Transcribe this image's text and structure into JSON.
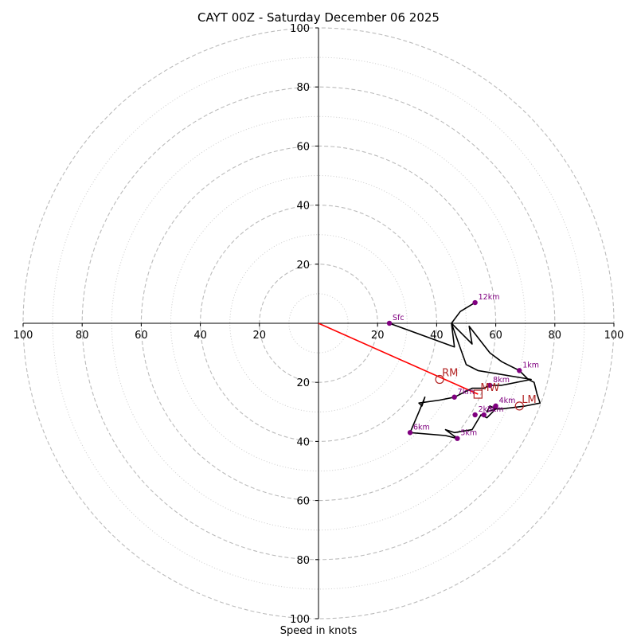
{
  "chart_data": {
    "type": "hodograph",
    "title": "CAYT 00Z - Saturday December 06 2025",
    "xlabel": "Speed in knots",
    "xlim": [
      -100,
      100
    ],
    "ylim": [
      -100,
      100
    ],
    "x_ticks": [
      {
        "value": -100,
        "label": "100"
      },
      {
        "value": -80,
        "label": "80"
      },
      {
        "value": -60,
        "label": "60"
      },
      {
        "value": -40,
        "label": "40"
      },
      {
        "value": -20,
        "label": "20"
      },
      {
        "value": 20,
        "label": "20"
      },
      {
        "value": 40,
        "label": "40"
      },
      {
        "value": 60,
        "label": "60"
      },
      {
        "value": 80,
        "label": "80"
      },
      {
        "value": 100,
        "label": "100"
      }
    ],
    "y_ticks": [
      {
        "value": 100,
        "label": "100"
      },
      {
        "value": 80,
        "label": "80"
      },
      {
        "value": 60,
        "label": "60"
      },
      {
        "value": 40,
        "label": "40"
      },
      {
        "value": 20,
        "label": "20"
      },
      {
        "value": -20,
        "label": "20"
      },
      {
        "value": -40,
        "label": "40"
      },
      {
        "value": -60,
        "label": "60"
      },
      {
        "value": -80,
        "label": "80"
      },
      {
        "value": -100,
        "label": "100"
      }
    ],
    "rings_major": [
      20,
      40,
      60,
      80,
      100
    ],
    "rings_minor": [
      10,
      30,
      50,
      70,
      90
    ],
    "hodograph_line": [
      {
        "u": 24,
        "v": 0
      },
      {
        "u": 46,
        "v": -8
      },
      {
        "u": 45,
        "v": 0
      },
      {
        "u": 49,
        "v": -4
      },
      {
        "u": 52,
        "v": -7
      },
      {
        "u": 51,
        "v": -1
      },
      {
        "u": 58,
        "v": -10
      },
      {
        "u": 62,
        "v": -13
      },
      {
        "u": 68,
        "v": -16
      },
      {
        "u": 71,
        "v": -19
      },
      {
        "u": 73,
        "v": -20
      },
      {
        "u": 74,
        "v": -24
      },
      {
        "u": 75,
        "v": -27
      },
      {
        "u": 70,
        "v": -28
      },
      {
        "u": 62,
        "v": -29
      },
      {
        "u": 60,
        "v": -29
      },
      {
        "u": 58,
        "v": -28
      },
      {
        "u": 57,
        "v": -30
      },
      {
        "u": 60,
        "v": -29
      },
      {
        "u": 57,
        "v": -32
      },
      {
        "u": 55,
        "v": -31
      },
      {
        "u": 52,
        "v": -36
      },
      {
        "u": 46,
        "v": -37
      },
      {
        "u": 43,
        "v": -36
      },
      {
        "u": 47,
        "v": -39
      },
      {
        "u": 43,
        "v": -38
      },
      {
        "u": 31,
        "v": -37
      },
      {
        "u": 34,
        "v": -30
      },
      {
        "u": 36,
        "v": -25
      },
      {
        "u": 35,
        "v": -28
      },
      {
        "u": 34,
        "v": -27
      },
      {
        "u": 41,
        "v": -26
      },
      {
        "u": 46,
        "v": -25
      },
      {
        "u": 50,
        "v": -23
      },
      {
        "u": 52,
        "v": -22
      },
      {
        "u": 56,
        "v": -22
      },
      {
        "u": 58,
        "v": -21
      },
      {
        "u": 62,
        "v": -21
      },
      {
        "u": 72,
        "v": -19
      },
      {
        "u": 54,
        "v": -16
      },
      {
        "u": 50,
        "v": -14
      },
      {
        "u": 45,
        "v": 0
      },
      {
        "u": 48,
        "v": 4
      },
      {
        "u": 53,
        "v": 7
      }
    ],
    "height_markers": [
      {
        "label": "Sfc",
        "u": 24,
        "v": 0
      },
      {
        "label": "1km",
        "u": 68,
        "v": -16
      },
      {
        "label": "2km",
        "u": 53,
        "v": -31
      },
      {
        "label": "3km",
        "u": 56,
        "v": -31
      },
      {
        "label": "4km",
        "u": 60,
        "v": -28
      },
      {
        "label": "5km",
        "u": 47,
        "v": -39
      },
      {
        "label": "6km",
        "u": 31,
        "v": -37
      },
      {
        "label": "7km",
        "u": 46,
        "v": -25
      },
      {
        "label": "8km",
        "u": 58,
        "v": -21
      },
      {
        "label": "12km",
        "u": 53,
        "v": 7
      }
    ],
    "storm_motions": [
      {
        "label": "RM",
        "u": 41,
        "v": -19,
        "marker": "circle"
      },
      {
        "label": "LM",
        "u": 68,
        "v": -28,
        "marker": "circle"
      },
      {
        "label": "MW",
        "u": 54,
        "v": -24,
        "marker": "square"
      }
    ],
    "shear_vector": {
      "from_u": 0,
      "from_v": 0,
      "to_u": 54,
      "to_v": -24
    },
    "colors": {
      "hodograph": "#000000",
      "markers": "#800080",
      "storm_motion": "#b22222",
      "shear_vector": "#ff0000",
      "rings": "#bbbbbb"
    }
  }
}
